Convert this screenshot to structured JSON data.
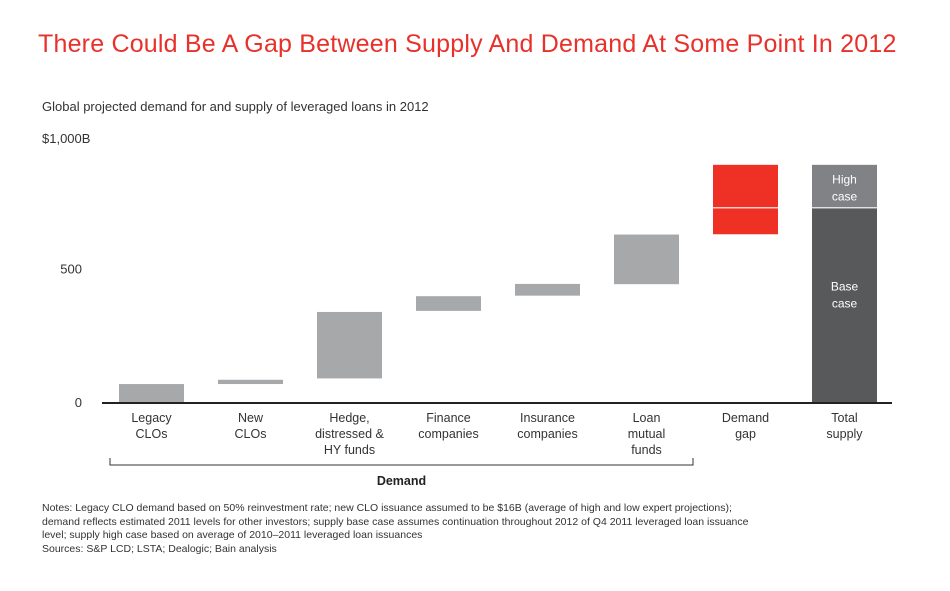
{
  "title": "There Could Be A Gap Between Supply And Demand At Some Point In 2012",
  "chart_data": {
    "type": "bar",
    "subtitle": "Global projected demand for and supply of leveraged loans in 2012",
    "ylabel": "$1,000B",
    "ylim": [
      0,
      1000
    ],
    "yticks": [
      {
        "value": 0,
        "label": "0"
      },
      {
        "value": 500,
        "label": "500"
      }
    ],
    "categories": [
      {
        "lines": [
          "Legacy",
          "CLOs"
        ],
        "start": 0,
        "end": 71
      },
      {
        "lines": [
          "New",
          "CLOs"
        ],
        "start": 71,
        "end": 87
      },
      {
        "lines": [
          "Hedge,",
          "distressed &",
          "HY funds"
        ],
        "start": 92,
        "end": 341
      },
      {
        "lines": [
          "Finance",
          "companies"
        ],
        "start": 345,
        "end": 400
      },
      {
        "lines": [
          "Insurance",
          "companies"
        ],
        "start": 402,
        "end": 446
      },
      {
        "lines": [
          "Loan",
          "mutual",
          "funds"
        ],
        "start": 445,
        "end": 631
      },
      {
        "lines": [
          "Demand",
          "gap"
        ],
        "start": 632,
        "end": 892,
        "divider": 731
      },
      {
        "lines": [
          "Total",
          "supply"
        ],
        "start": 0,
        "end": 892,
        "divider": 731
      }
    ],
    "total_supply_segments": [
      {
        "lines": [
          "Base",
          "case"
        ],
        "value": 731
      },
      {
        "lines": [
          "High",
          "case"
        ],
        "value": 161
      }
    ],
    "group_label": "Demand",
    "colors": {
      "demand": "#a7a8aa",
      "gap": "#ee3124",
      "supply_base": "#58595b",
      "supply_high": "#818285",
      "axis": "#222222"
    }
  },
  "notes": [
    "Notes: Legacy CLO demand based on 50% reinvestment rate; new CLO issuance assumed to be $16B (average of high and low expert projections);",
    "demand reflects estimated 2011 levels for other investors; supply base case assumes continuation throughout 2012 of Q4 2011 leveraged loan issuance",
    "level; supply high case based on average of 2010–2011 leveraged loan issuances",
    "Sources: S&P LCD; LSTA; Dealogic; Bain analysis"
  ]
}
